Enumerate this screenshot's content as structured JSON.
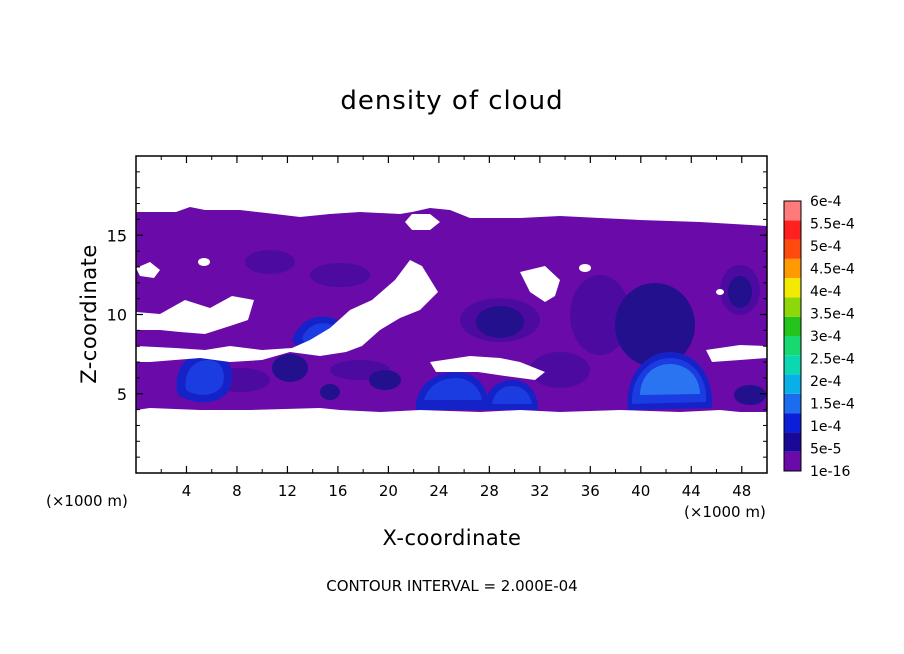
{
  "chart_data": {
    "type": "heatmap",
    "title": "density of cloud",
    "xlabel": "X-coordinate",
    "ylabel": "Z-coordinate",
    "x_unit_left": "(×1000 m)",
    "x_unit_right": "(×1000 m)",
    "footer": "CONTOUR INTERVAL = 2.000E-04",
    "xlim": [
      0,
      50
    ],
    "ylim": [
      0,
      20
    ],
    "x_ticks": [
      {
        "value": 4,
        "label": "4"
      },
      {
        "value": 8,
        "label": "8"
      },
      {
        "value": 12,
        "label": "12"
      },
      {
        "value": 16,
        "label": "16"
      },
      {
        "value": 20,
        "label": "20"
      },
      {
        "value": 24,
        "label": "24"
      },
      {
        "value": 28,
        "label": "28"
      },
      {
        "value": 32,
        "label": "32"
      },
      {
        "value": 36,
        "label": "36"
      },
      {
        "value": 40,
        "label": "40"
      },
      {
        "value": 44,
        "label": "44"
      },
      {
        "value": 48,
        "label": "48"
      }
    ],
    "y_ticks": [
      {
        "value": 5,
        "label": "5"
      },
      {
        "value": 10,
        "label": "10"
      },
      {
        "value": 15,
        "label": "15"
      }
    ],
    "colorbar": {
      "labels": [
        "1e-16",
        "5e-5",
        "1e-4",
        "1.5e-4",
        "2e-4",
        "2.5e-4",
        "3e-4",
        "3.5e-4",
        "4e-4",
        "4.5e-4",
        "5e-4",
        "5.5e-4",
        "6e-4"
      ],
      "colors": [
        "#6a0aa8",
        "#1a0896",
        "#0d1ed8",
        "#1c6cf0",
        "#09b0e8",
        "#0bd8b0",
        "#18d870",
        "#24c41c",
        "#8ed80a",
        "#f2ea02",
        "#ff9a00",
        "#ff4a10",
        "#ff2020",
        "#ff7a7a"
      ]
    },
    "regions": {
      "cloud_layer": {
        "x": [
          0,
          50
        ],
        "z": [
          4,
          16.3
        ]
      },
      "cores": [
        {
          "x": 5.2,
          "z": 6.2,
          "level": "1e-4"
        },
        {
          "x": 14.8,
          "z": 8.8,
          "level": "1e-4"
        },
        {
          "x": 24.3,
          "z": 5.3,
          "level": "1e-4"
        },
        {
          "x": 29.8,
          "z": 5.1,
          "level": "1e-4"
        },
        {
          "x": 42.0,
          "z": 6.0,
          "level": "1.5e-4"
        },
        {
          "x": 29.0,
          "z": 9.5,
          "level": "5e-5"
        },
        {
          "x": 41.5,
          "z": 9.8,
          "level": "5e-5"
        }
      ]
    }
  }
}
